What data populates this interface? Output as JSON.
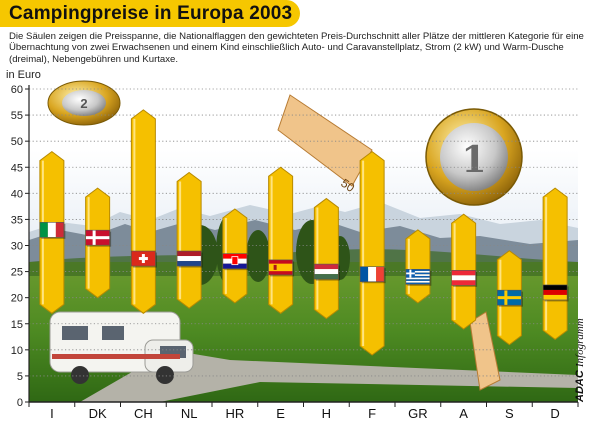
{
  "header": {
    "title": "Campingpreise in Europa 2003",
    "subtitle": "Die Säulen zeigen die Preisspanne, die Nationalflaggen den gewichteten Preis-Durchschnitt aller Plätze der mittleren Kategorie für eine Übernachtung von zwei Erwachsenen und einem Kind einschließlich Auto- und Caravanstellplatz, Strom (2 kW) und Warm-Dusche (dreimal), Nebengebühren und Kurtaxe."
  },
  "credit": {
    "brand": "ADAC",
    "label": "Infogramm"
  },
  "colors": {
    "accent": "#f6c700",
    "bar_fill": "#f5c000",
    "bar_edge": "#b88a00"
  },
  "chart_data": {
    "type": "range-bar",
    "title": "Campingpreise in Europa 2003",
    "ylabel": "in Euro",
    "ylim": [
      0,
      60
    ],
    "yticks": [
      0,
      5,
      10,
      15,
      20,
      25,
      30,
      35,
      40,
      45,
      50,
      55,
      60
    ],
    "grid": true,
    "categories": [
      "I",
      "DK",
      "CH",
      "NL",
      "HR",
      "E",
      "H",
      "F",
      "GR",
      "A",
      "S",
      "D"
    ],
    "series": [
      {
        "name": "min",
        "values": [
          17,
          20,
          17,
          18,
          19,
          17,
          16,
          9,
          19,
          14,
          11,
          12
        ]
      },
      {
        "name": "max",
        "values": [
          48,
          41,
          56,
          44,
          37,
          45,
          39,
          48,
          33,
          36,
          29,
          41
        ]
      },
      {
        "name": "average",
        "values": [
          33,
          31.5,
          27.5,
          27.5,
          27,
          25.8,
          25,
          24.5,
          24,
          23.8,
          20,
          21
        ]
      }
    ],
    "flags": [
      "italy-flag",
      "denmark-flag",
      "switzerland-flag",
      "netherlands-flag",
      "croatia-flag",
      "spain-flag",
      "hungary-flag",
      "france-flag",
      "greece-flag",
      "austria-flag",
      "sweden-flag",
      "germany-flag"
    ]
  }
}
